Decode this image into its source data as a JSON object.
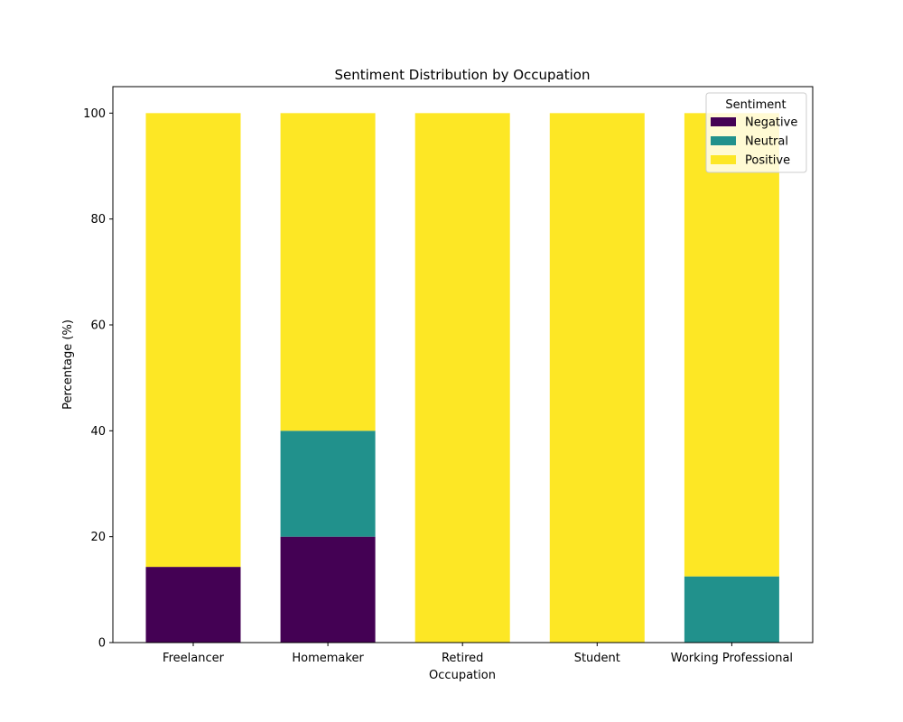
{
  "chart_data": {
    "type": "bar",
    "stacked": true,
    "title": "Sentiment Distribution by Occupation",
    "xlabel": "Occupation",
    "ylabel": "Percentage (%)",
    "ylim": [
      0,
      105
    ],
    "yticks": [
      0,
      20,
      40,
      60,
      80,
      100
    ],
    "categories": [
      "Freelancer",
      "Homemaker",
      "Retired",
      "Student",
      "Working Professional"
    ],
    "series": [
      {
        "name": "Negative",
        "color": "#440154",
        "values": [
          14.3,
          20,
          0,
          0,
          0
        ]
      },
      {
        "name": "Neutral",
        "color": "#21918c",
        "values": [
          0,
          20,
          0,
          0,
          12.5
        ]
      },
      {
        "name": "Positive",
        "color": "#fde725",
        "values": [
          85.7,
          60,
          100,
          100,
          87.5
        ]
      }
    ],
    "legend": {
      "title": "Sentiment",
      "position": "top-right"
    },
    "grid": false
  }
}
